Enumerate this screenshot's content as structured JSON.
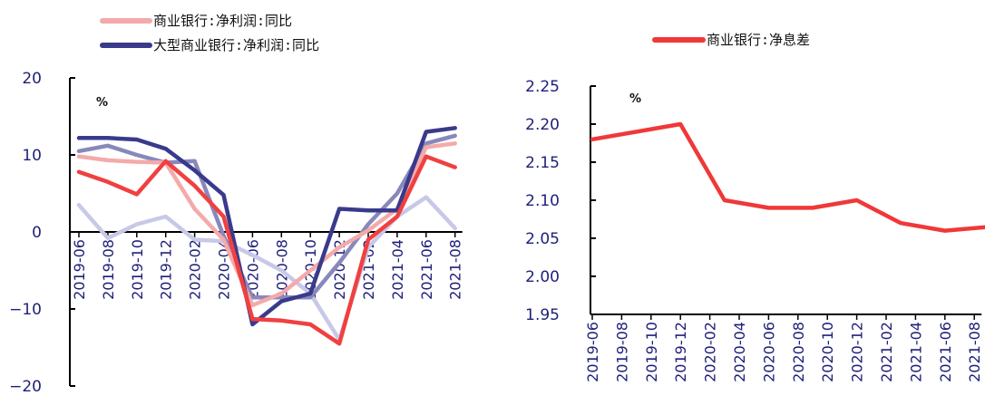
{
  "chart_data": [
    {
      "type": "line",
      "unit": "%",
      "ylim": [
        -20,
        20
      ],
      "yticks": [
        20,
        10,
        0,
        -10,
        -20
      ],
      "ytick_labels": [
        "20",
        "10",
        "0",
        "−10",
        "−20"
      ],
      "xtick_labels": [
        "2019-06",
        "2019-08",
        "2019-10",
        "2019-12",
        "2020-02",
        "2020-04",
        "2020-06",
        "2020-08",
        "2020-10",
        "2020-12",
        "2021-02",
        "2021-04",
        "2021-06",
        "2021-08"
      ],
      "legend": [
        "商业银行:净利润:同比",
        "大型商业银行:净利润:同比"
      ],
      "series": [
        {
          "color": "#c8c8e8",
          "values": [
            3.5,
            -0.8,
            1.0,
            2.0,
            -1.0,
            -1.2,
            -3.0,
            -5.0,
            -8.0,
            -14.0,
            -2.0,
            2.0,
            4.5,
            0.5
          ]
        },
        {
          "color": "#8888bb",
          "values": [
            10.5,
            11.2,
            10.0,
            9.0,
            9.2,
            -0.5,
            -8.5,
            -8.5,
            -8.5,
            -4.0,
            1.0,
            5.0,
            11.5,
            12.5
          ]
        },
        {
          "name": "商业银行:净利润:同比",
          "color": "#f4aaaa",
          "values": [
            9.8,
            9.3,
            9.1,
            9.0,
            3.0,
            -1.0,
            -9.5,
            -8.0,
            -5.0,
            -2.0,
            0.2,
            3.0,
            11.0,
            11.5
          ]
        },
        {
          "name": "大型商业银行:净利润:同比",
          "color": "#3a3a8c",
          "values": [
            12.2,
            12.2,
            12.0,
            10.8,
            8.0,
            4.8,
            -12.0,
            -9.0,
            -8.0,
            3.0,
            2.8,
            2.8,
            13.0,
            13.5
          ]
        },
        {
          "color": "#f04040",
          "values": [
            7.8,
            6.5,
            4.9,
            9.2,
            6.0,
            2.0,
            -11.3,
            -11.5,
            -12.0,
            -14.5,
            -1.0,
            2.0,
            9.8,
            8.4
          ]
        }
      ]
    },
    {
      "type": "line",
      "unit": "%",
      "ylim": [
        1.95,
        2.25
      ],
      "yticks": [
        2.25,
        2.2,
        2.15,
        2.1,
        2.05,
        2.0,
        1.95
      ],
      "ytick_labels": [
        "2.25",
        "2.20",
        "2.15",
        "2.10",
        "2.05",
        "2.00",
        "1.95"
      ],
      "xtick_labels": [
        "2019-06",
        "2019-08",
        "2019-10",
        "2019-12",
        "2020-02",
        "2020-04",
        "2020-06",
        "2020-08",
        "2020-10",
        "2020-12",
        "2021-02",
        "2021-04",
        "2021-06",
        "2021-08"
      ],
      "legend": [
        "商业银行:净息差"
      ],
      "series": [
        {
          "name": "商业银行:净息差",
          "color": "#f03838",
          "x": [
            "2019-06",
            "2019-12",
            "2020-03",
            "2020-06",
            "2020-09",
            "2020-12",
            "2021-03",
            "2021-06",
            "2021-09"
          ],
          "values": [
            2.18,
            2.2,
            2.1,
            2.09,
            2.09,
            2.1,
            2.07,
            2.06,
            2.065
          ]
        }
      ]
    }
  ]
}
